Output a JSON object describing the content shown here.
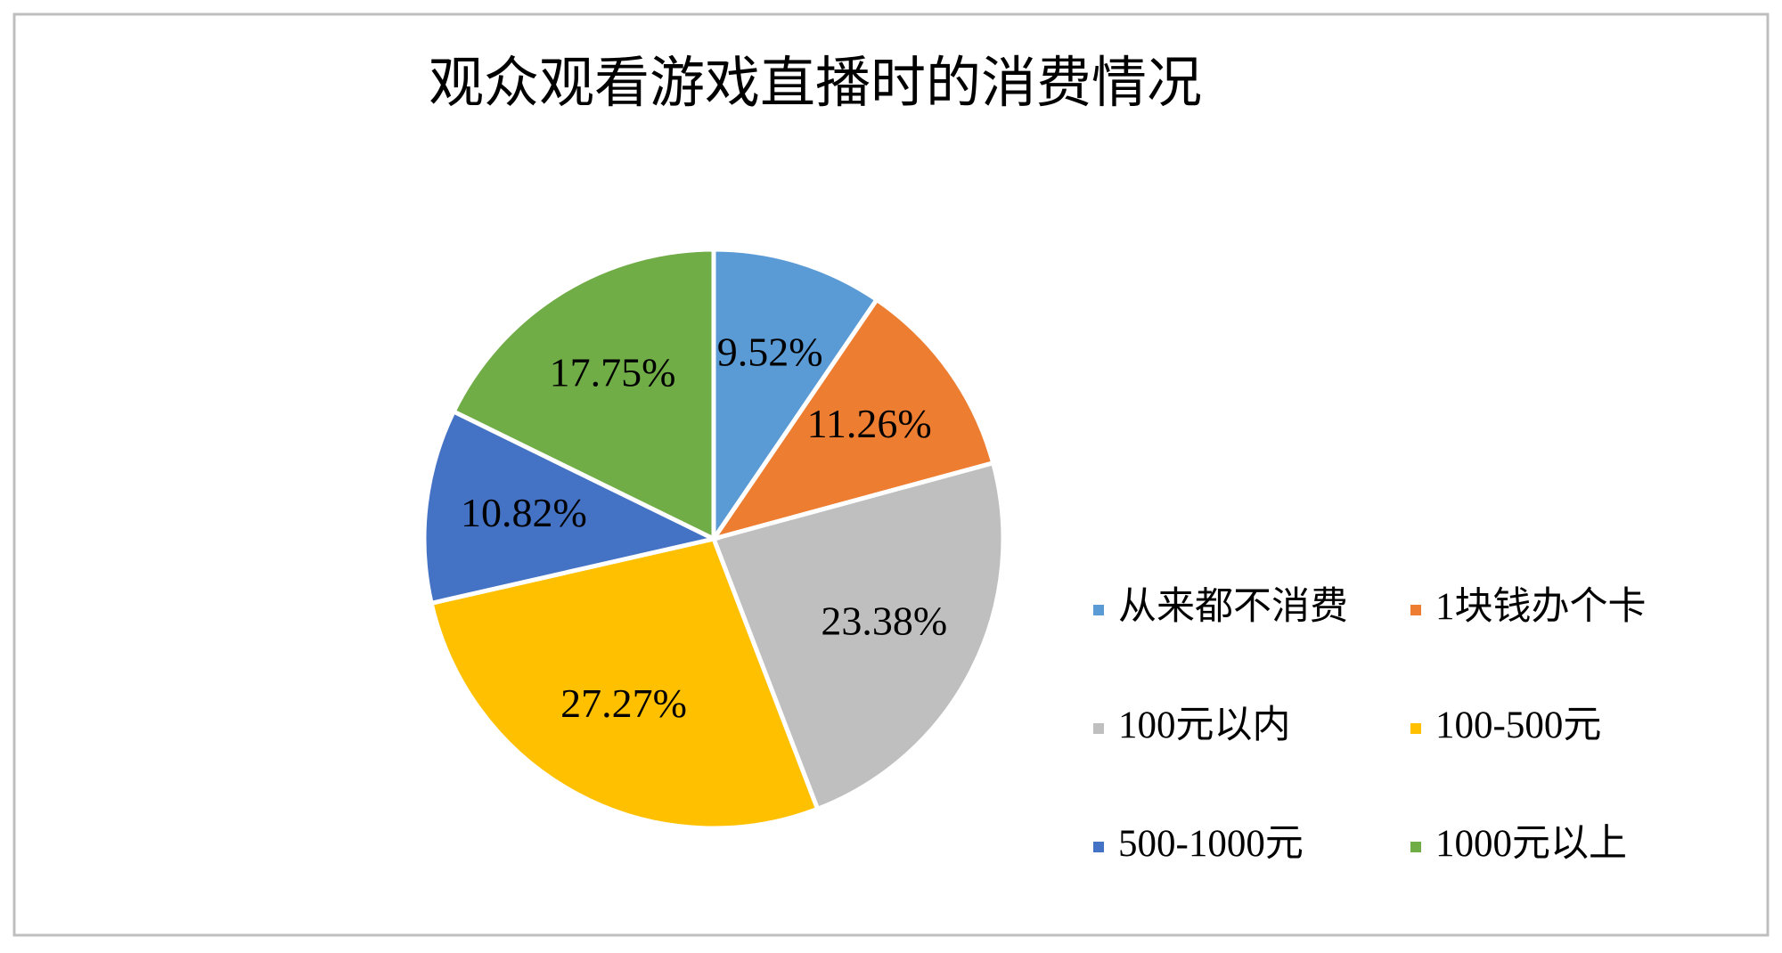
{
  "chart_data": {
    "type": "pie",
    "title": "观众观看游戏直播时的消费情况",
    "categories": [
      "从来都不消费",
      "1块钱办个卡",
      "100元以内",
      "100-500元",
      "500-1000元",
      "1000元以上"
    ],
    "values": [
      9.52,
      11.26,
      23.38,
      27.27,
      10.82,
      17.75
    ],
    "value_labels": [
      "9.52%",
      "11.26%",
      "23.38%",
      "27.27%",
      "10.82%",
      "17.75%"
    ],
    "colors": [
      "#5b9bd5",
      "#ed7d31",
      "#bfbfbf",
      "#ffc000",
      "#4472c4",
      "#70ad47"
    ],
    "legend": "right"
  }
}
